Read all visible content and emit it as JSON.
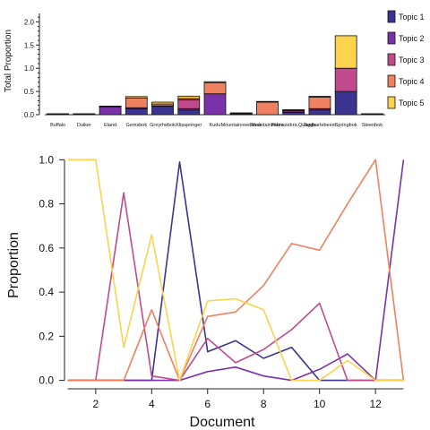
{
  "chart_data": [
    {
      "type": "bar",
      "stacked": true,
      "ylabel": "Total Proportion",
      "ylim": [
        0,
        2.2
      ],
      "yticks": [
        "0.0",
        "0.5",
        "1.0",
        "1.5",
        "2.0"
      ],
      "yticks_values": [
        0,
        0.5,
        1.0,
        1.5,
        2.0
      ],
      "categories": [
        "Buffalo",
        "Duiker",
        "Eland",
        "Gemsbok",
        "Greyrhebok",
        "Klipspringer",
        "Kudu",
        "Mountainreedbuck",
        "Mountainzebra",
        "Plainszebra,Quagga",
        "Redhartebeest",
        "Springbok",
        "Steenbok"
      ],
      "series": [
        {
          "name": "Topic 1",
          "color": "#3b3490",
          "values": [
            0.0,
            0.0,
            0.0,
            0.13,
            0.18,
            0.1,
            0.0,
            0.0,
            0.0,
            0.05,
            0.1,
            0.5,
            0.0
          ]
        },
        {
          "name": "Topic 2",
          "color": "#7b32a8",
          "values": [
            0.0,
            0.0,
            0.17,
            0.0,
            0.0,
            0.03,
            0.45,
            0.02,
            0.0,
            0.01,
            0.03,
            0.0,
            0.0
          ]
        },
        {
          "name": "Topic 3",
          "color": "#c04a8c",
          "values": [
            0.0,
            0.0,
            0.0,
            0.02,
            0.01,
            0.19,
            0.0,
            0.0,
            0.0,
            0.03,
            0.0,
            0.5,
            0.0
          ]
        },
        {
          "name": "Topic 4",
          "color": "#ef8060",
          "values": [
            0.0,
            0.0,
            0.0,
            0.21,
            0.04,
            0.03,
            0.24,
            0.0,
            0.27,
            0.0,
            0.25,
            0.0,
            0.0
          ]
        },
        {
          "name": "Topic 5",
          "color": "#fbd34c",
          "values": [
            0.0,
            0.0,
            0.01,
            0.03,
            0.04,
            0.05,
            0.02,
            0.0,
            0.01,
            0.0,
            0.01,
            0.7,
            0.0
          ]
        }
      ],
      "legend": [
        "Topic 1",
        "Topic 2",
        "Topic 3",
        "Topic 4",
        "Topic 5"
      ],
      "legend_position": "right"
    },
    {
      "type": "line",
      "xlabel": "Document",
      "ylabel": "Proportion",
      "xlim": [
        0.5,
        13.5
      ],
      "ylim": [
        -0.03,
        1.05
      ],
      "xticks": [
        "2",
        "4",
        "6",
        "8",
        "10",
        "12"
      ],
      "xticks_values": [
        2,
        4,
        6,
        8,
        10,
        12
      ],
      "yticks": [
        "0.0",
        "0.2",
        "0.4",
        "0.6",
        "0.8",
        "1.0"
      ],
      "yticks_values": [
        0,
        0.2,
        0.4,
        0.6,
        0.8,
        1.0
      ],
      "x": [
        1,
        2,
        3,
        4,
        5,
        6,
        7,
        8,
        9,
        10,
        11,
        12,
        13
      ],
      "series": [
        {
          "color": "#3b3490",
          "values": [
            0.0,
            0.0,
            0.0,
            0.0,
            0.99,
            0.13,
            0.18,
            0.1,
            0.15,
            0.0,
            0.0,
            0.0,
            0.0
          ]
        },
        {
          "color": "#7b32a8",
          "values": [
            0.0,
            0.0,
            0.0,
            0.0,
            0.0,
            0.04,
            0.06,
            0.02,
            0.0,
            0.05,
            0.12,
            0.0,
            1.0
          ]
        },
        {
          "color": "#c04a8c",
          "values": [
            0.0,
            0.0,
            0.85,
            0.02,
            0.0,
            0.19,
            0.08,
            0.14,
            0.23,
            0.35,
            0.0,
            0.0,
            0.0
          ]
        },
        {
          "color": "#ef8060",
          "values": [
            0.0,
            0.0,
            0.0,
            0.32,
            0.0,
            0.29,
            0.31,
            0.43,
            0.62,
            0.59,
            0.8,
            1.0,
            0.0
          ]
        },
        {
          "color": "#fbd34c",
          "values": [
            1.0,
            1.0,
            0.15,
            0.66,
            0.0,
            0.36,
            0.37,
            0.32,
            0.0,
            0.0,
            0.09,
            0.0,
            0.0
          ]
        }
      ]
    }
  ]
}
